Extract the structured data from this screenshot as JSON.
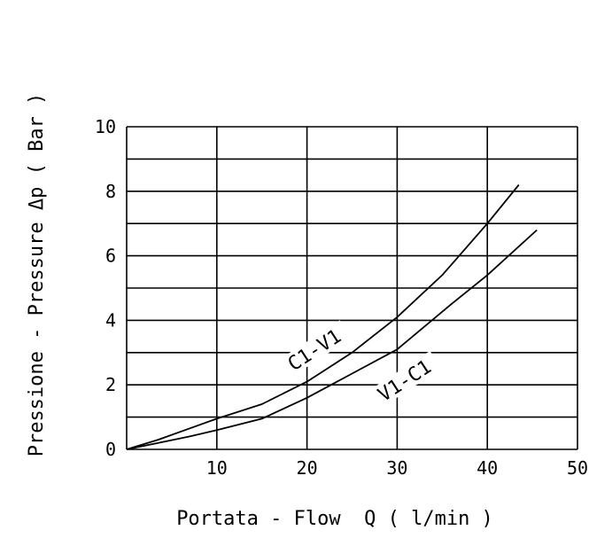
{
  "chart_data": {
    "type": "line",
    "title": "",
    "xlabel": "Portata - Flow  Q ( l/min )",
    "ylabel": "Pressione - Pressure Δp ( Bar )",
    "xlim": [
      0,
      50
    ],
    "ylim": [
      0,
      10
    ],
    "x_ticks": [
      10,
      20,
      30,
      40,
      50
    ],
    "y_ticks": [
      0,
      2,
      4,
      6,
      8,
      10
    ],
    "grid": true,
    "minor_y_grid": true,
    "line_color": "#000000",
    "series": [
      {
        "name": "C1-V1",
        "x": [
          0,
          3.5,
          7,
          10,
          15,
          20,
          25,
          30,
          35,
          40,
          43.5
        ],
        "y": [
          0,
          0.3,
          0.65,
          0.95,
          1.4,
          2.1,
          3.0,
          4.1,
          5.4,
          7.0,
          8.2
        ],
        "label_at": [
          21,
          3.0
        ],
        "label_angle": -33
      },
      {
        "name": "V1-C1",
        "x": [
          0,
          3.5,
          7,
          10,
          15,
          20,
          25,
          30,
          36,
          40,
          45.5
        ],
        "y": [
          0,
          0.2,
          0.4,
          0.6,
          0.95,
          1.6,
          2.35,
          3.1,
          4.5,
          5.4,
          6.8
        ],
        "label_at": [
          31,
          2.05
        ],
        "label_angle": -33
      }
    ]
  }
}
